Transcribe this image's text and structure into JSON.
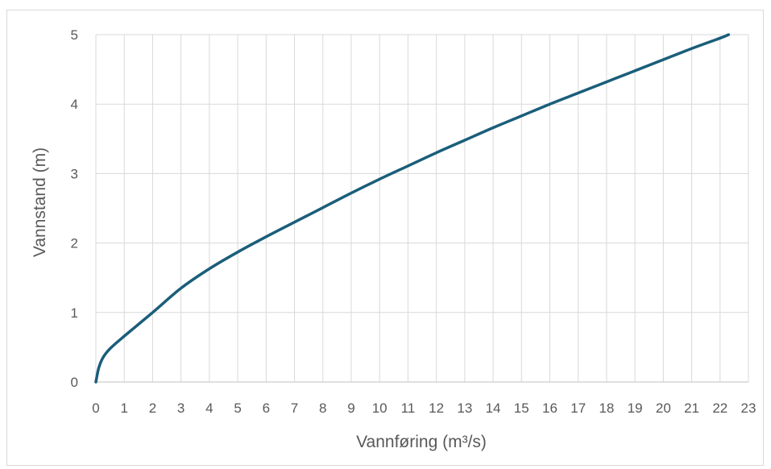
{
  "chart_data": {
    "type": "line",
    "xlabel": "Vannføring (m³/s)",
    "ylabel": "Vannstand (m)",
    "xlim": [
      0,
      23
    ],
    "ylim": [
      0,
      5
    ],
    "x_ticks": [
      "0",
      "1",
      "2",
      "3",
      "4",
      "5",
      "6",
      "7",
      "8",
      "9",
      "10",
      "11",
      "12",
      "13",
      "14",
      "15",
      "16",
      "17",
      "18",
      "19",
      "20",
      "21",
      "22",
      "23"
    ],
    "y_ticks": [
      "0",
      "1",
      "2",
      "3",
      "4",
      "5"
    ],
    "grid": true,
    "legend": "none",
    "series": [
      {
        "color": "#1a5e7a",
        "x": [
          0,
          0.1,
          0.25,
          0.5,
          1,
          2,
          3,
          4,
          5,
          6,
          7,
          8,
          9,
          10,
          11,
          12,
          13,
          14,
          15,
          16,
          17,
          18,
          19,
          20,
          21,
          22,
          22.3
        ],
        "y": [
          0,
          0.2,
          0.35,
          0.48,
          0.66,
          1.0,
          1.35,
          1.63,
          1.87,
          2.09,
          2.3,
          2.51,
          2.72,
          2.92,
          3.11,
          3.3,
          3.48,
          3.66,
          3.83,
          4.0,
          4.16,
          4.32,
          4.48,
          4.64,
          4.8,
          4.95,
          5.0
        ]
      }
    ]
  }
}
